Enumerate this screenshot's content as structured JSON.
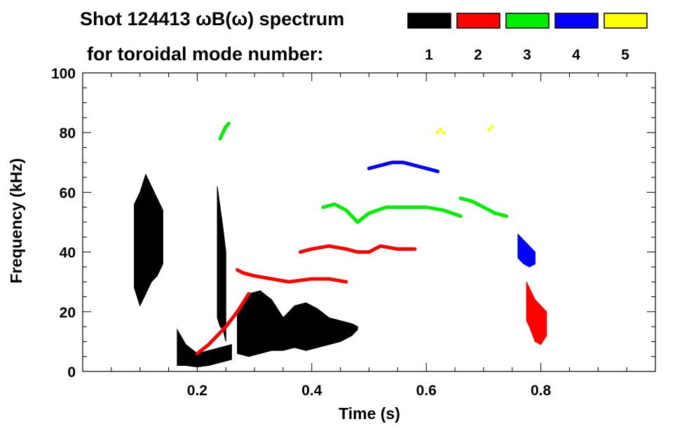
{
  "chart_data": {
    "type": "heatmap",
    "title_line1": "Shot 124413 ωB(ω) spectrum",
    "title_line2": "for toroidal mode number:",
    "xlabel": "Time (s)",
    "ylabel": "Frequency (kHz)",
    "xlim": [
      0.0,
      1.0
    ],
    "ylim": [
      0,
      100
    ],
    "x_ticks": [
      0.2,
      0.4,
      0.6,
      0.8
    ],
    "y_ticks": [
      0,
      20,
      40,
      60,
      80,
      100
    ],
    "grid": false,
    "legend_placement": "top-right",
    "modes": [
      {
        "label": "1",
        "color": "#000000"
      },
      {
        "label": "2",
        "color": "#ff0000"
      },
      {
        "label": "3",
        "color": "#00ee00"
      },
      {
        "label": "4",
        "color": "#0000ff"
      },
      {
        "label": "5",
        "color": "#ffff00"
      }
    ],
    "series": [
      {
        "mode": "1",
        "kind": "band",
        "t": [
          0.09,
          0.1,
          0.11,
          0.12,
          0.13,
          0.14
        ],
        "f_lo": [
          28,
          22,
          26,
          30,
          32,
          36
        ],
        "f_hi": [
          56,
          60,
          66,
          62,
          58,
          54
        ]
      },
      {
        "mode": "1",
        "kind": "band",
        "t": [
          0.165,
          0.18,
          0.2,
          0.22,
          0.24,
          0.26
        ],
        "f_lo": [
          2,
          2,
          1.5,
          2,
          3,
          4
        ],
        "f_hi": [
          14,
          9,
          6,
          7,
          8,
          9
        ]
      },
      {
        "mode": "1",
        "kind": "band",
        "t": [
          0.27,
          0.29,
          0.31,
          0.33,
          0.35,
          0.37,
          0.39,
          0.41,
          0.43,
          0.45,
          0.47,
          0.48
        ],
        "f_lo": [
          6,
          5,
          6,
          7,
          7,
          8,
          7,
          8,
          9,
          10,
          12,
          14
        ],
        "f_hi": [
          20,
          26,
          27,
          24,
          18,
          22,
          23,
          21,
          18,
          17,
          16,
          15
        ]
      },
      {
        "mode": "1",
        "kind": "band",
        "t": [
          0.235,
          0.24,
          0.245,
          0.25
        ],
        "f_lo": [
          18,
          15,
          14,
          10
        ],
        "f_hi": [
          62,
          55,
          48,
          40
        ]
      },
      {
        "mode": "2",
        "kind": "line",
        "t": [
          0.27,
          0.28,
          0.3,
          0.33,
          0.36,
          0.4,
          0.43,
          0.46
        ],
        "f": [
          34,
          33,
          32,
          31,
          30,
          31,
          31,
          30
        ]
      },
      {
        "mode": "2",
        "kind": "line",
        "t": [
          0.38,
          0.4,
          0.43,
          0.46,
          0.48,
          0.5,
          0.52,
          0.55,
          0.58
        ],
        "f": [
          40,
          41,
          42,
          41,
          40,
          40,
          42,
          41,
          41
        ]
      },
      {
        "mode": "2",
        "kind": "line",
        "t": [
          0.2,
          0.22,
          0.25,
          0.27,
          0.29
        ],
        "f": [
          6,
          9,
          15,
          20,
          26
        ]
      },
      {
        "mode": "2",
        "kind": "band",
        "t": [
          0.775,
          0.78,
          0.79,
          0.8,
          0.81
        ],
        "f_lo": [
          17,
          15,
          10,
          9,
          12
        ],
        "f_hi": [
          30,
          28,
          24,
          22,
          20
        ]
      },
      {
        "mode": "3",
        "kind": "line",
        "t": [
          0.42,
          0.44,
          0.46,
          0.48,
          0.5,
          0.53,
          0.56,
          0.6,
          0.63,
          0.66
        ],
        "f": [
          55,
          56,
          54,
          50,
          53,
          55,
          55,
          55,
          54,
          52
        ]
      },
      {
        "mode": "3",
        "kind": "line",
        "t": [
          0.66,
          0.68,
          0.7,
          0.72,
          0.74
        ],
        "f": [
          58,
          57,
          55,
          53,
          52
        ]
      },
      {
        "mode": "3",
        "kind": "line",
        "t": [
          0.24,
          0.245,
          0.25,
          0.255
        ],
        "f": [
          78,
          80,
          82,
          83
        ]
      },
      {
        "mode": "4",
        "kind": "line",
        "t": [
          0.5,
          0.52,
          0.54,
          0.56,
          0.58,
          0.6,
          0.62
        ],
        "f": [
          68,
          69,
          70,
          70,
          69,
          68,
          67
        ]
      },
      {
        "mode": "4",
        "kind": "band",
        "t": [
          0.76,
          0.77,
          0.78,
          0.79
        ],
        "f_lo": [
          38,
          36,
          35,
          36
        ],
        "f_hi": [
          46,
          44,
          42,
          40
        ]
      },
      {
        "mode": "5",
        "kind": "points",
        "t": [
          0.62,
          0.625,
          0.63,
          0.71,
          0.715
        ],
        "f": [
          80,
          81,
          80,
          81,
          82
        ]
      }
    ]
  }
}
